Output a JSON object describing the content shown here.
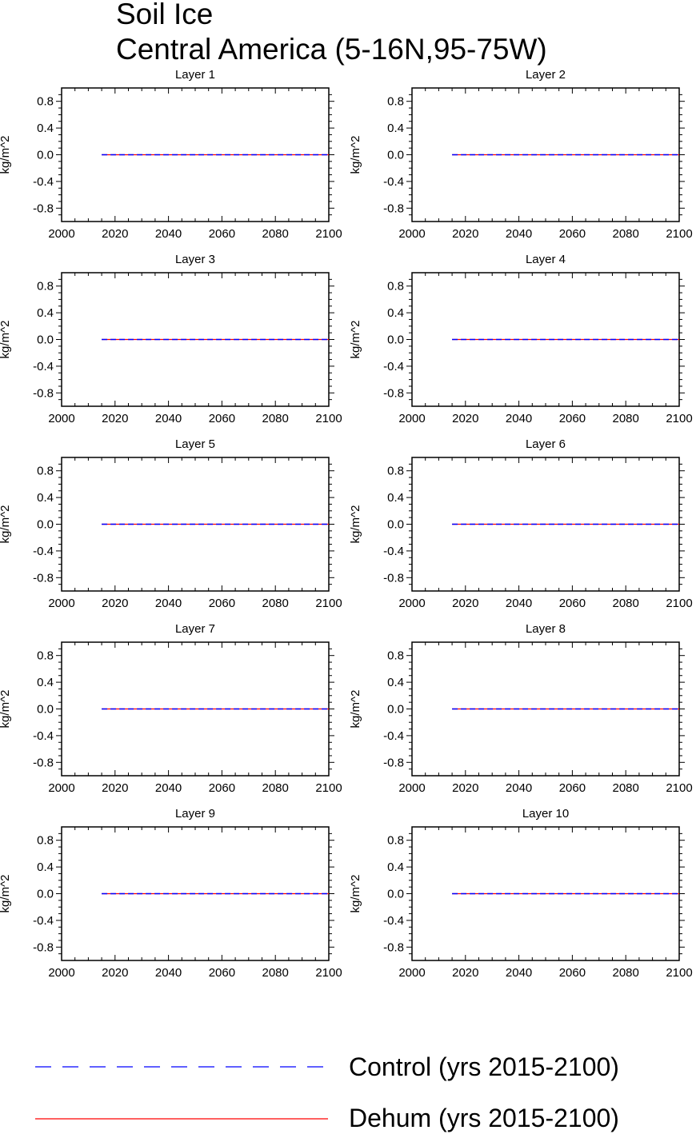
{
  "title": {
    "line1": "Soil Ice",
    "line2": "Central America (5-16N,95-75W)"
  },
  "legend": [
    {
      "label": "Control (yrs 2015-2100)",
      "color": "#0000ff",
      "style": "dashed"
    },
    {
      "label": "Dehum (yrs 2015-2100)",
      "color": "#ff0000",
      "style": "solid"
    }
  ],
  "chart_data": [
    {
      "type": "line",
      "title": "Layer 1",
      "ylabel": "kg/m^2",
      "xlim": [
        2000,
        2100
      ],
      "ylim": [
        -1,
        1
      ],
      "xticks": [
        "2000",
        "2020",
        "2040",
        "2060",
        "2080",
        "2100"
      ],
      "yticks": [
        "0.8",
        "0.4",
        "0.0",
        "-0.4",
        "-0.8"
      ],
      "series": [
        {
          "name": "Control (yrs 2015-2100)",
          "x": [
            2015,
            2100
          ],
          "y": [
            0,
            0
          ]
        },
        {
          "name": "Dehum (yrs 2015-2100)",
          "x": [
            2015,
            2100
          ],
          "y": [
            0,
            0
          ]
        }
      ]
    },
    {
      "type": "line",
      "title": "Layer 2",
      "ylabel": "kg/m^2",
      "xlim": [
        2000,
        2100
      ],
      "ylim": [
        -1,
        1
      ],
      "xticks": [
        "2000",
        "2020",
        "2040",
        "2060",
        "2080",
        "2100"
      ],
      "yticks": [
        "0.8",
        "0.4",
        "0.0",
        "-0.4",
        "-0.8"
      ],
      "series": [
        {
          "name": "Control (yrs 2015-2100)",
          "x": [
            2015,
            2100
          ],
          "y": [
            0,
            0
          ]
        },
        {
          "name": "Dehum (yrs 2015-2100)",
          "x": [
            2015,
            2100
          ],
          "y": [
            0,
            0
          ]
        }
      ]
    },
    {
      "type": "line",
      "title": "Layer 3",
      "ylabel": "kg/m^2",
      "xlim": [
        2000,
        2100
      ],
      "ylim": [
        -1,
        1
      ],
      "xticks": [
        "2000",
        "2020",
        "2040",
        "2060",
        "2080",
        "2100"
      ],
      "yticks": [
        "0.8",
        "0.4",
        "0.0",
        "-0.4",
        "-0.8"
      ],
      "series": [
        {
          "name": "Control (yrs 2015-2100)",
          "x": [
            2015,
            2100
          ],
          "y": [
            0,
            0
          ]
        },
        {
          "name": "Dehum (yrs 2015-2100)",
          "x": [
            2015,
            2100
          ],
          "y": [
            0,
            0
          ]
        }
      ]
    },
    {
      "type": "line",
      "title": "Layer 4",
      "ylabel": "kg/m^2",
      "xlim": [
        2000,
        2100
      ],
      "ylim": [
        -1,
        1
      ],
      "xticks": [
        "2000",
        "2020",
        "2040",
        "2060",
        "2080",
        "2100"
      ],
      "yticks": [
        "0.8",
        "0.4",
        "0.0",
        "-0.4",
        "-0.8"
      ],
      "series": [
        {
          "name": "Control (yrs 2015-2100)",
          "x": [
            2015,
            2100
          ],
          "y": [
            0,
            0
          ]
        },
        {
          "name": "Dehum (yrs 2015-2100)",
          "x": [
            2015,
            2100
          ],
          "y": [
            0,
            0
          ]
        }
      ]
    },
    {
      "type": "line",
      "title": "Layer 5",
      "ylabel": "kg/m^2",
      "xlim": [
        2000,
        2100
      ],
      "ylim": [
        -1,
        1
      ],
      "xticks": [
        "2000",
        "2020",
        "2040",
        "2060",
        "2080",
        "2100"
      ],
      "yticks": [
        "0.8",
        "0.4",
        "0.0",
        "-0.4",
        "-0.8"
      ],
      "series": [
        {
          "name": "Control (yrs 2015-2100)",
          "x": [
            2015,
            2100
          ],
          "y": [
            0,
            0
          ]
        },
        {
          "name": "Dehum (yrs 2015-2100)",
          "x": [
            2015,
            2100
          ],
          "y": [
            0,
            0
          ]
        }
      ]
    },
    {
      "type": "line",
      "title": "Layer 6",
      "ylabel": "kg/m^2",
      "xlim": [
        2000,
        2100
      ],
      "ylim": [
        -1,
        1
      ],
      "xticks": [
        "2000",
        "2020",
        "2040",
        "2060",
        "2080",
        "2100"
      ],
      "yticks": [
        "0.8",
        "0.4",
        "0.0",
        "-0.4",
        "-0.8"
      ],
      "series": [
        {
          "name": "Control (yrs 2015-2100)",
          "x": [
            2015,
            2100
          ],
          "y": [
            0,
            0
          ]
        },
        {
          "name": "Dehum (yrs 2015-2100)",
          "x": [
            2015,
            2100
          ],
          "y": [
            0,
            0
          ]
        }
      ]
    },
    {
      "type": "line",
      "title": "Layer 7",
      "ylabel": "kg/m^2",
      "xlim": [
        2000,
        2100
      ],
      "ylim": [
        -1,
        1
      ],
      "xticks": [
        "2000",
        "2020",
        "2040",
        "2060",
        "2080",
        "2100"
      ],
      "yticks": [
        "0.8",
        "0.4",
        "0.0",
        "-0.4",
        "-0.8"
      ],
      "series": [
        {
          "name": "Control (yrs 2015-2100)",
          "x": [
            2015,
            2100
          ],
          "y": [
            0,
            0
          ]
        },
        {
          "name": "Dehum (yrs 2015-2100)",
          "x": [
            2015,
            2100
          ],
          "y": [
            0,
            0
          ]
        }
      ]
    },
    {
      "type": "line",
      "title": "Layer 8",
      "ylabel": "kg/m^2",
      "xlim": [
        2000,
        2100
      ],
      "ylim": [
        -1,
        1
      ],
      "xticks": [
        "2000",
        "2020",
        "2040",
        "2060",
        "2080",
        "2100"
      ],
      "yticks": [
        "0.8",
        "0.4",
        "0.0",
        "-0.4",
        "-0.8"
      ],
      "series": [
        {
          "name": "Control (yrs 2015-2100)",
          "x": [
            2015,
            2100
          ],
          "y": [
            0,
            0
          ]
        },
        {
          "name": "Dehum (yrs 2015-2100)",
          "x": [
            2015,
            2100
          ],
          "y": [
            0,
            0
          ]
        }
      ]
    },
    {
      "type": "line",
      "title": "Layer 9",
      "ylabel": "kg/m^2",
      "xlim": [
        2000,
        2100
      ],
      "ylim": [
        -1,
        1
      ],
      "xticks": [
        "2000",
        "2020",
        "2040",
        "2060",
        "2080",
        "2100"
      ],
      "yticks": [
        "0.8",
        "0.4",
        "0.0",
        "-0.4",
        "-0.8"
      ],
      "series": [
        {
          "name": "Control (yrs 2015-2100)",
          "x": [
            2015,
            2100
          ],
          "y": [
            0,
            0
          ]
        },
        {
          "name": "Dehum (yrs 2015-2100)",
          "x": [
            2015,
            2100
          ],
          "y": [
            0,
            0
          ]
        }
      ]
    },
    {
      "type": "line",
      "title": "Layer 10",
      "ylabel": "kg/m^2",
      "xlim": [
        2000,
        2100
      ],
      "ylim": [
        -1,
        1
      ],
      "xticks": [
        "2000",
        "2020",
        "2040",
        "2060",
        "2080",
        "2100"
      ],
      "yticks": [
        "0.8",
        "0.4",
        "0.0",
        "-0.4",
        "-0.8"
      ],
      "series": [
        {
          "name": "Control (yrs 2015-2100)",
          "x": [
            2015,
            2100
          ],
          "y": [
            0,
            0
          ]
        },
        {
          "name": "Dehum (yrs 2015-2100)",
          "x": [
            2015,
            2100
          ],
          "y": [
            0,
            0
          ]
        }
      ]
    }
  ]
}
